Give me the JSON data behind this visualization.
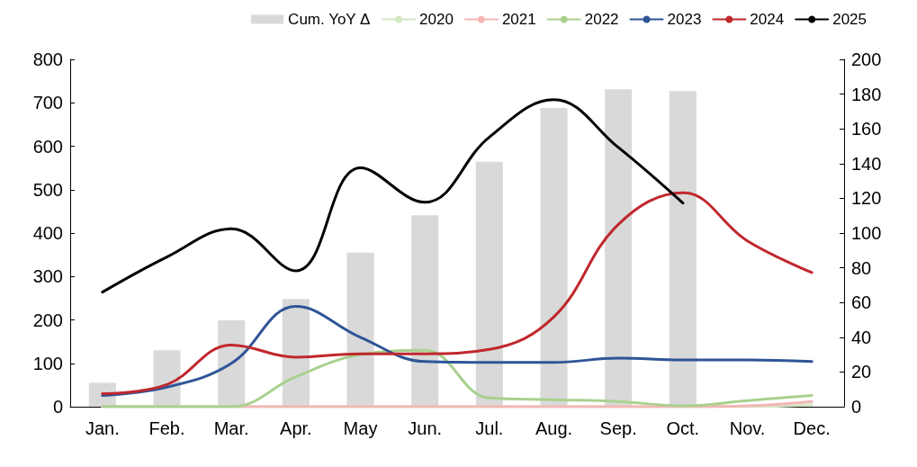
{
  "chart_data": {
    "type": "line",
    "categories": [
      "Jan.",
      "Feb.",
      "Mar.",
      "Apr.",
      "May",
      "Jun.",
      "Jul.",
      "Aug.",
      "Sep.",
      "Oct.",
      "Nov.",
      "Dec."
    ],
    "series": [
      {
        "name": "Cum. YoY Δ",
        "type": "bar",
        "color": "#d9d9d9",
        "values": [
          55,
          130,
          199,
          248,
          355,
          441,
          564,
          688,
          731,
          727,
          null,
          null
        ]
      },
      {
        "name": "2020",
        "color": "#d5e8c4",
        "values": [
          0,
          0,
          0,
          0,
          0,
          0,
          0,
          0,
          0,
          0,
          0,
          4
        ]
      },
      {
        "name": "2021",
        "color": "#f4b6b6",
        "values": [
          0,
          0,
          0,
          0,
          0,
          0,
          0,
          0,
          0,
          0,
          2,
          12
        ]
      },
      {
        "name": "2022",
        "color": "#a9d18e",
        "values": [
          0,
          0,
          0,
          69,
          120,
          130,
          20,
          16,
          12,
          2,
          14,
          26
        ]
      },
      {
        "name": "2023",
        "color": "#2f5597",
        "values": [
          26,
          45,
          100,
          231,
          160,
          104,
          102,
          102,
          112,
          108,
          108,
          104
        ]
      },
      {
        "name": "2024",
        "color": "#c0282d",
        "values": [
          30,
          51,
          142,
          114,
          122,
          122,
          132,
          207,
          420,
          493,
          382,
          309
        ]
      },
      {
        "name": "2025",
        "color": "#000000",
        "values": [
          264,
          345,
          410,
          313,
          550,
          471,
          621,
          707,
          597,
          469,
          null,
          null
        ]
      }
    ],
    "ylim": [
      0,
      800
    ],
    "yticks": [
      0,
      100,
      200,
      300,
      400,
      500,
      600,
      700,
      800
    ],
    "y2lim": [
      0,
      200
    ],
    "y2ticks": [
      0,
      20,
      40,
      60,
      80,
      100,
      120,
      140,
      160,
      180,
      200
    ],
    "grid": false,
    "legend": "top",
    "marker": "none",
    "line_style": "solid"
  }
}
